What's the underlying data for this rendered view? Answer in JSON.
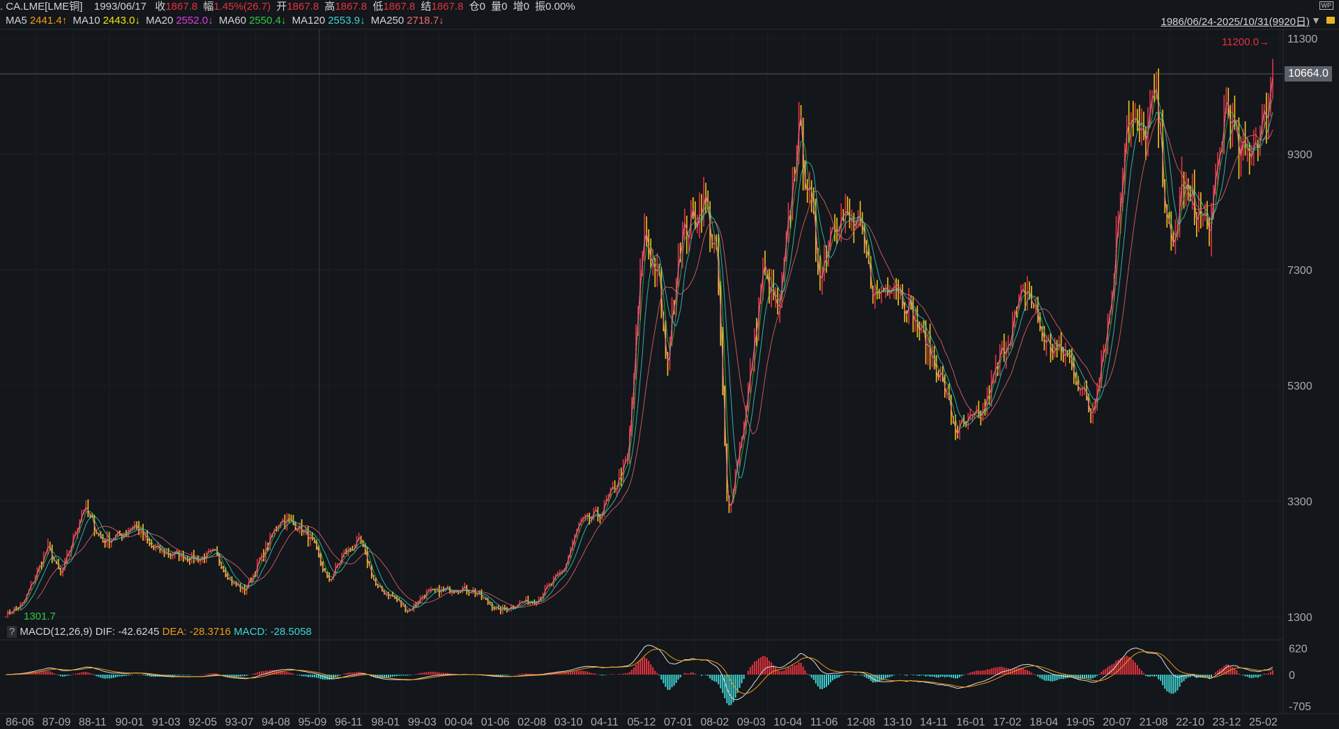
{
  "header": {
    "symbol": ". CA.LME[LME铜]",
    "date": "1993/06/17",
    "close_label": "收",
    "close": "1867.8",
    "change_label": "幅",
    "change": "1.45%(26.7)",
    "open_label": "开",
    "open": "1867.8",
    "high_label": "高",
    "high": "1867.8",
    "low_label": "低",
    "low": "1867.8",
    "settle_label": "结",
    "settle": "1867.8",
    "oi": "仓0",
    "volume": "量0",
    "increase": "增0",
    "amplitude": "振0.00%"
  },
  "ma": [
    {
      "label": "MA5",
      "value": "2441.4↑",
      "color": "#f39c12"
    },
    {
      "label": "MA10",
      "value": "2443.0↓",
      "color": "#f5e50c"
    },
    {
      "label": "MA20",
      "value": "2552.0↓",
      "color": "#e040e0"
    },
    {
      "label": "MA60",
      "value": "2550.4↓",
      "color": "#2ecc40"
    },
    {
      "label": "MA120",
      "value": "2553.9↓",
      "color": "#3fd5d5"
    },
    {
      "label": "MA250",
      "value": "2718.7↓",
      "color": "#f06a6a"
    }
  ],
  "range": "1986/06/24-2025/10/31(9920日)",
  "wp_label": "WP",
  "macd": {
    "name": "MACD(12,26,9)",
    "dif": "DIF: -42.6245",
    "dea": "DEA: -28.3716",
    "macd": "MACD: -28.5058",
    "help": "?"
  },
  "chart_data": {
    "type": "candlestick",
    "x_range": [
      1986.48,
      2025.83
    ],
    "ylim": [
      1300,
      11300
    ],
    "y_ticks": [
      "11300",
      "9300",
      "7300",
      "5300",
      "3300",
      "1300"
    ],
    "x_ticks": [
      "86-06",
      "87-09",
      "88-11",
      "90-01",
      "91-03",
      "92-05",
      "93-07",
      "94-08",
      "95-09",
      "96-11",
      "98-01",
      "99-03",
      "00-04",
      "01-06",
      "02-08",
      "03-10",
      "04-11",
      "05-12",
      "07-01",
      "08-02",
      "09-03",
      "10-04",
      "11-06",
      "12-08",
      "13-10",
      "14-11",
      "16-01",
      "17-02",
      "18-04",
      "19-05",
      "20-07",
      "21-08",
      "22-10",
      "23-12",
      "25-02"
    ],
    "high_marker": "11200.0",
    "low_marker": "1301.7",
    "current_price": "10664.0",
    "current_value": 10664,
    "macd_ticks": [
      "620",
      "0",
      "-705"
    ],
    "macd_ylim": [
      -705,
      620
    ],
    "approx_price_path": [
      [
        1986.5,
        1350
      ],
      [
        1987.0,
        1500
      ],
      [
        1987.8,
        2500
      ],
      [
        1988.2,
        2000
      ],
      [
        1988.9,
        3200
      ],
      [
        1989.5,
        2600
      ],
      [
        1990.0,
        2700
      ],
      [
        1990.5,
        2900
      ],
      [
        1991.0,
        2500
      ],
      [
        1991.5,
        2400
      ],
      [
        1992.5,
        2300
      ],
      [
        1993.0,
        2400
      ],
      [
        1993.5,
        1900
      ],
      [
        1993.9,
        1750
      ],
      [
        1994.5,
        2400
      ],
      [
        1995.0,
        3000
      ],
      [
        1995.5,
        2900
      ],
      [
        1996.0,
        2600
      ],
      [
        1996.5,
        1900
      ],
      [
        1997.0,
        2400
      ],
      [
        1997.5,
        2600
      ],
      [
        1998.0,
        1800
      ],
      [
        1998.5,
        1650
      ],
      [
        1999.0,
        1400
      ],
      [
        1999.5,
        1700
      ],
      [
        2000.5,
        1800
      ],
      [
        2001.0,
        1750
      ],
      [
        2001.8,
        1400
      ],
      [
        2002.5,
        1550
      ],
      [
        2003.0,
        1600
      ],
      [
        2003.8,
        2100
      ],
      [
        2004.3,
        2900
      ],
      [
        2005.0,
        3100
      ],
      [
        2005.8,
        4000
      ],
      [
        2006.3,
        8000
      ],
      [
        2006.8,
        7000
      ],
      [
        2007.0,
        5500
      ],
      [
        2007.4,
        7800
      ],
      [
        2008.2,
        8500
      ],
      [
        2008.6,
        7300
      ],
      [
        2008.9,
        3000
      ],
      [
        2009.5,
        5000
      ],
      [
        2010.0,
        7300
      ],
      [
        2010.5,
        6500
      ],
      [
        2011.1,
        9800
      ],
      [
        2011.8,
        7200
      ],
      [
        2012.2,
        8300
      ],
      [
        2013.0,
        8000
      ],
      [
        2013.5,
        6800
      ],
      [
        2014.0,
        7200
      ],
      [
        2014.5,
        6700
      ],
      [
        2015.5,
        5500
      ],
      [
        2016.0,
        4500
      ],
      [
        2016.8,
        4800
      ],
      [
        2017.5,
        6000
      ],
      [
        2018.2,
        7000
      ],
      [
        2018.8,
        6000
      ],
      [
        2019.5,
        5800
      ],
      [
        2020.2,
        4800
      ],
      [
        2020.8,
        6700
      ],
      [
        2021.3,
        10000
      ],
      [
        2021.8,
        9500
      ],
      [
        2022.2,
        10300
      ],
      [
        2022.7,
        7400
      ],
      [
        2023.0,
        8800
      ],
      [
        2023.5,
        8300
      ],
      [
        2023.9,
        8000
      ],
      [
        2024.4,
        10300
      ],
      [
        2024.8,
        9200
      ],
      [
        2025.2,
        9500
      ],
      [
        2025.5,
        9700
      ],
      [
        2025.83,
        10664
      ]
    ],
    "colors": {
      "up": "#e5333f",
      "down": "#f5c518",
      "background": "#13161b"
    }
  }
}
